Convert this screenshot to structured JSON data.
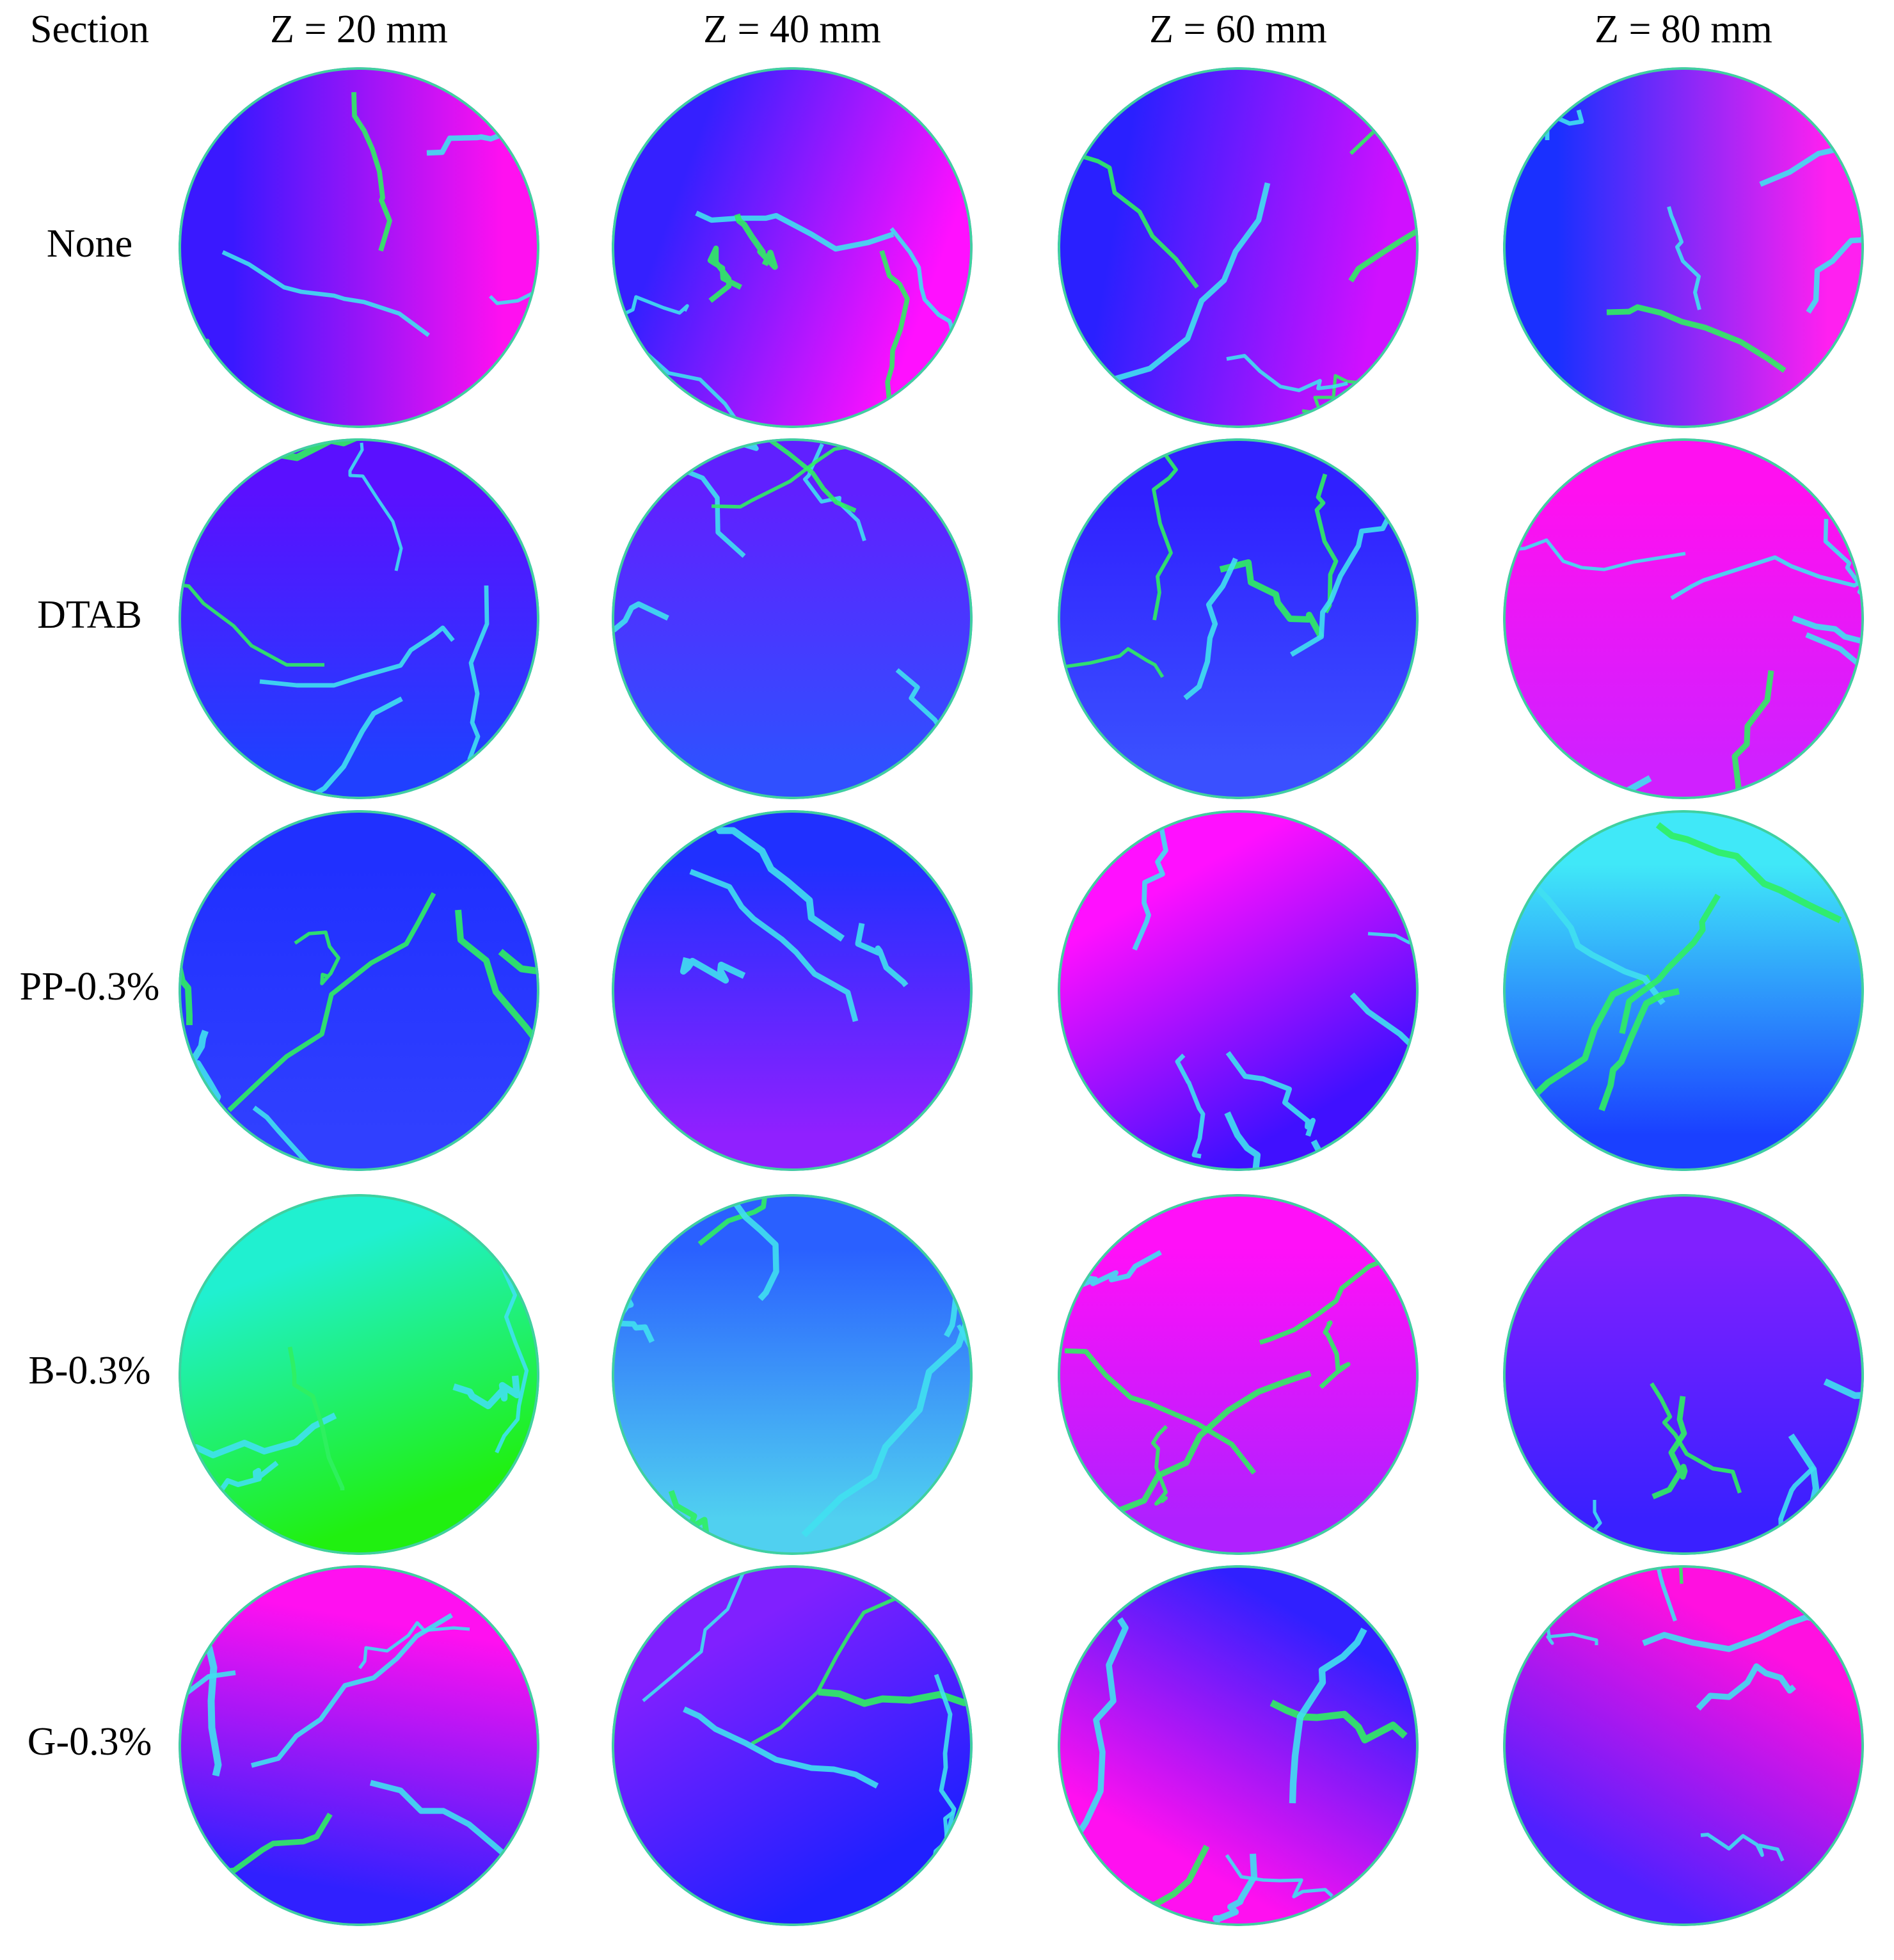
{
  "header": {
    "corner": "Section",
    "columns": [
      "Z = 20 mm",
      "Z = 40 mm",
      "Z = 60 mm",
      "Z = 80 mm"
    ]
  },
  "rows": [
    "None",
    "DTAB",
    "PP-0.3%",
    "B-0.3%",
    "G-0.3%"
  ]
}
